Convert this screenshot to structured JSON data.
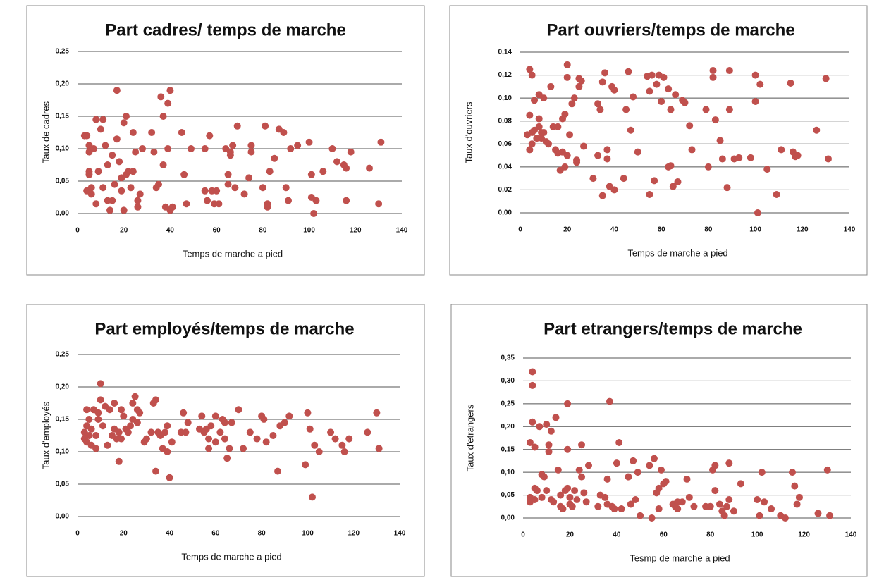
{
  "chart_data": [
    {
      "type": "scatter",
      "title": "Part cadres/ temps de marche",
      "xlabel": "Temps de marche a pied",
      "ylabel": "Taux de cadres",
      "color": "#c0504d",
      "grid": true,
      "xlim": [
        0,
        140
      ],
      "xticks": [
        0,
        20,
        40,
        60,
        80,
        100,
        120,
        140
      ],
      "ylim": [
        0,
        0.25
      ],
      "yticks": [
        {
          "value": 0,
          "label": "0,00"
        },
        {
          "value": 0.05,
          "label": "0,05"
        },
        {
          "value": 0.1,
          "label": "0,10"
        },
        {
          "value": 0.15,
          "label": "0,15"
        },
        {
          "value": 0.2,
          "label": "0,20"
        },
        {
          "value": 0.25,
          "label": "0,25"
        }
      ],
      "x": [
        3,
        4,
        4,
        5,
        5,
        5,
        5,
        6,
        6,
        7,
        8,
        8,
        9,
        10,
        11,
        11,
        12,
        13,
        13,
        14,
        15,
        15,
        16,
        17,
        17,
        18,
        19,
        19,
        20,
        20,
        21,
        21,
        22,
        23,
        24,
        24,
        25,
        26,
        26,
        27,
        28,
        32,
        33,
        34,
        35,
        36,
        37,
        37,
        38,
        39,
        39,
        40,
        40,
        41,
        45,
        46,
        47,
        49,
        55,
        55,
        56,
        57,
        58,
        59,
        60,
        61,
        64,
        65,
        65,
        66,
        66,
        67,
        68,
        69,
        72,
        74,
        75,
        75,
        80,
        81,
        82,
        82,
        83,
        85,
        87,
        89,
        90,
        91,
        92,
        95,
        100,
        101,
        101,
        102,
        103,
        106,
        110,
        112,
        115,
        116,
        116,
        118,
        126,
        130,
        131
      ],
      "values": [
        0.12,
        0.12,
        0.035,
        0.105,
        0.095,
        0.065,
        0.06,
        0.04,
        0.03,
        0.1,
        0.145,
        0.015,
        0.065,
        0.13,
        0.145,
        0.04,
        0.105,
        0.02,
        0.075,
        0.005,
        0.02,
        0.09,
        0.045,
        0.19,
        0.115,
        0.08,
        0.035,
        0.055,
        0.005,
        0.14,
        0.15,
        0.06,
        0.065,
        0.04,
        0.125,
        0.065,
        0.095,
        0.02,
        0.01,
        0.03,
        0.1,
        0.125,
        0.095,
        0.04,
        0.045,
        0.18,
        0.15,
        0.075,
        0.01,
        0.1,
        0.17,
        0.19,
        0.005,
        0.01,
        0.125,
        0.06,
        0.015,
        0.1,
        0.1,
        0.035,
        0.02,
        0.12,
        0.035,
        0.015,
        0.035,
        0.015,
        0.1,
        0.06,
        0.045,
        0.095,
        0.09,
        0.105,
        0.04,
        0.135,
        0.03,
        0.055,
        0.105,
        0.095,
        0.04,
        0.135,
        0.015,
        0.01,
        0.065,
        0.085,
        0.13,
        0.125,
        0.04,
        0.02,
        0.1,
        0.105,
        0.11,
        0.025,
        0.06,
        0.0,
        0.02,
        0.065,
        0.1,
        0.08,
        0.075,
        0.07,
        0.02,
        0.095,
        0.07,
        0.015,
        0.11
      ]
    },
    {
      "type": "scatter",
      "title": "Part ouvriers/temps de marche",
      "xlabel": "Temps de marche a pied",
      "ylabel": "Taux d'ouvriers",
      "color": "#c0504d",
      "grid": true,
      "xlim": [
        0,
        140
      ],
      "xticks": [
        0,
        20,
        40,
        60,
        80,
        100,
        120,
        140
      ],
      "ylim": [
        0,
        0.14
      ],
      "yticks": [
        {
          "value": 0,
          "label": "0,00"
        },
        {
          "value": 0.02,
          "label": "0,02"
        },
        {
          "value": 0.04,
          "label": "0,04"
        },
        {
          "value": 0.06,
          "label": "0,06"
        },
        {
          "value": 0.08,
          "label": "0,08"
        },
        {
          "value": 0.1,
          "label": "0,10"
        },
        {
          "value": 0.12,
          "label": "0,12"
        },
        {
          "value": 0.14,
          "label": "0,14"
        }
      ],
      "x": [
        3,
        4,
        4,
        4,
        5,
        5,
        5,
        6,
        6,
        7,
        8,
        8,
        8,
        9,
        9,
        10,
        10,
        11,
        12,
        13,
        14,
        15,
        16,
        16,
        17,
        18,
        18,
        19,
        19,
        20,
        20,
        20,
        21,
        22,
        23,
        24,
        24,
        25,
        25,
        26,
        27,
        31,
        33,
        33,
        34,
        35,
        35,
        36,
        37,
        37,
        38,
        39,
        40,
        40,
        44,
        45,
        46,
        47,
        48,
        50,
        54,
        55,
        55,
        56,
        57,
        58,
        59,
        60,
        61,
        63,
        63,
        64,
        64,
        65,
        66,
        67,
        69,
        70,
        72,
        73,
        79,
        80,
        82,
        82,
        83,
        85,
        86,
        88,
        89,
        89,
        91,
        93,
        98,
        100,
        100,
        101,
        102,
        105,
        109,
        111,
        115,
        116,
        117,
        118,
        126,
        130,
        131
      ],
      "values": [
        0.068,
        0.125,
        0.055,
        0.085,
        0.12,
        0.07,
        0.06,
        0.098,
        0.072,
        0.065,
        0.103,
        0.082,
        0.075,
        0.07,
        0.065,
        0.1,
        0.07,
        0.062,
        0.06,
        0.11,
        0.075,
        0.055,
        0.075,
        0.052,
        0.037,
        0.082,
        0.053,
        0.04,
        0.086,
        0.129,
        0.118,
        0.05,
        0.068,
        0.095,
        0.1,
        0.046,
        0.044,
        0.11,
        0.117,
        0.115,
        0.058,
        0.03,
        0.05,
        0.095,
        0.09,
        0.015,
        0.114,
        0.122,
        0.055,
        0.047,
        0.023,
        0.11,
        0.107,
        0.02,
        0.03,
        0.09,
        0.123,
        0.072,
        0.101,
        0.053,
        0.119,
        0.106,
        0.016,
        0.12,
        0.028,
        0.112,
        0.12,
        0.097,
        0.118,
        0.108,
        0.04,
        0.041,
        0.09,
        0.023,
        0.103,
        0.027,
        0.098,
        0.096,
        0.076,
        0.055,
        0.09,
        0.04,
        0.124,
        0.118,
        0.081,
        0.063,
        0.047,
        0.022,
        0.124,
        0.09,
        0.047,
        0.048,
        0.048,
        0.12,
        0.097,
        0.0,
        0.112,
        0.038,
        0.016,
        0.055,
        0.113,
        0.053,
        0.049,
        0.05,
        0.072,
        0.117,
        0.047
      ]
    },
    {
      "type": "scatter",
      "title": "Part employés/temps de marche",
      "xlabel": "Temps de marche a pied",
      "ylabel": "Taux d'employés",
      "color": "#c0504d",
      "grid": true,
      "xlim": [
        0,
        140
      ],
      "xticks": [
        0,
        20,
        40,
        60,
        80,
        100,
        120,
        140
      ],
      "ylim": [
        0,
        0.25
      ],
      "yticks": [
        {
          "value": 0,
          "label": "0,00"
        },
        {
          "value": 0.05,
          "label": "0,05"
        },
        {
          "value": 0.1,
          "label": "0,10"
        },
        {
          "value": 0.15,
          "label": "0,15"
        },
        {
          "value": 0.2,
          "label": "0,20"
        },
        {
          "value": 0.25,
          "label": "0,25"
        }
      ],
      "x": [
        3,
        3,
        4,
        4,
        4,
        5,
        5,
        6,
        6,
        7,
        8,
        8,
        9,
        9,
        10,
        10,
        11,
        12,
        13,
        14,
        15,
        16,
        16,
        17,
        18,
        18,
        19,
        19,
        20,
        21,
        22,
        23,
        24,
        24,
        25,
        26,
        26,
        27,
        29,
        30,
        32,
        33,
        34,
        34,
        35,
        36,
        37,
        38,
        39,
        39,
        40,
        41,
        45,
        46,
        47,
        48,
        53,
        54,
        55,
        56,
        57,
        57,
        58,
        60,
        60,
        62,
        63,
        64,
        64,
        65,
        66,
        67,
        70,
        72,
        75,
        78,
        80,
        81,
        82,
        85,
        87,
        88,
        90,
        92,
        99,
        100,
        101,
        102,
        103,
        105,
        110,
        112,
        115,
        116,
        118,
        126,
        130,
        131
      ],
      "values": [
        0.12,
        0.13,
        0.165,
        0.14,
        0.115,
        0.125,
        0.15,
        0.11,
        0.135,
        0.165,
        0.105,
        0.125,
        0.16,
        0.15,
        0.205,
        0.18,
        0.14,
        0.17,
        0.11,
        0.165,
        0.125,
        0.175,
        0.135,
        0.12,
        0.085,
        0.13,
        0.165,
        0.12,
        0.155,
        0.135,
        0.13,
        0.14,
        0.175,
        0.15,
        0.185,
        0.165,
        0.145,
        0.16,
        0.115,
        0.12,
        0.13,
        0.175,
        0.18,
        0.07,
        0.13,
        0.125,
        0.105,
        0.13,
        0.1,
        0.14,
        0.06,
        0.115,
        0.13,
        0.16,
        0.13,
        0.145,
        0.135,
        0.155,
        0.13,
        0.135,
        0.12,
        0.105,
        0.14,
        0.155,
        0.115,
        0.13,
        0.15,
        0.145,
        0.12,
        0.09,
        0.105,
        0.145,
        0.165,
        0.105,
        0.13,
        0.12,
        0.155,
        0.15,
        0.115,
        0.125,
        0.07,
        0.14,
        0.145,
        0.155,
        0.08,
        0.16,
        0.135,
        0.03,
        0.11,
        0.1,
        0.13,
        0.12,
        0.11,
        0.1,
        0.12,
        0.13,
        0.16,
        0.105
      ]
    },
    {
      "type": "scatter",
      "title": "Part etrangers/temps de marche",
      "xlabel": "Tesmp de marche a pied",
      "ylabel": "Taux d'etrangers",
      "color": "#c0504d",
      "grid": true,
      "xlim": [
        0,
        140
      ],
      "xticks": [
        0,
        20,
        40,
        60,
        80,
        100,
        120,
        140
      ],
      "ylim": [
        0,
        0.35
      ],
      "yticks": [
        {
          "value": 0,
          "label": "0,00"
        },
        {
          "value": 0.05,
          "label": "0,05"
        },
        {
          "value": 0.1,
          "label": "0,10"
        },
        {
          "value": 0.15,
          "label": "0,15"
        },
        {
          "value": 0.2,
          "label": "0,20"
        },
        {
          "value": 0.25,
          "label": "0,25"
        },
        {
          "value": 0.3,
          "label": "0,30"
        },
        {
          "value": 0.35,
          "label": "0,35"
        }
      ],
      "x": [
        3,
        3,
        3,
        4,
        4,
        4,
        5,
        5,
        5,
        6,
        7,
        8,
        8,
        9,
        10,
        10,
        11,
        11,
        12,
        12,
        13,
        14,
        15,
        16,
        16,
        17,
        18,
        19,
        19,
        19,
        20,
        20,
        21,
        22,
        23,
        24,
        25,
        25,
        26,
        27,
        28,
        32,
        33,
        35,
        36,
        36,
        37,
        38,
        39,
        40,
        41,
        42,
        45,
        46,
        47,
        48,
        49,
        50,
        54,
        55,
        56,
        57,
        58,
        58,
        59,
        60,
        61,
        64,
        65,
        66,
        66,
        68,
        70,
        71,
        73,
        78,
        80,
        81,
        82,
        82,
        84,
        85,
        86,
        87,
        88,
        88,
        90,
        93,
        100,
        101,
        102,
        103,
        106,
        110,
        112,
        115,
        116,
        117,
        118,
        126,
        130,
        131
      ],
      "values": [
        0.165,
        0.045,
        0.035,
        0.32,
        0.29,
        0.21,
        0.155,
        0.065,
        0.04,
        0.06,
        0.2,
        0.095,
        0.045,
        0.09,
        0.205,
        0.06,
        0.16,
        0.145,
        0.19,
        0.04,
        0.035,
        0.22,
        0.105,
        0.05,
        0.025,
        0.02,
        0.06,
        0.25,
        0.15,
        0.065,
        0.045,
        0.03,
        0.025,
        0.06,
        0.04,
        0.105,
        0.16,
        0.09,
        0.055,
        0.035,
        0.115,
        0.025,
        0.05,
        0.045,
        0.03,
        0.085,
        0.255,
        0.025,
        0.02,
        0.12,
        0.165,
        0.02,
        0.09,
        0.03,
        0.125,
        0.04,
        0.1,
        0.005,
        0.115,
        0.0,
        0.13,
        0.055,
        0.065,
        0.02,
        0.105,
        0.075,
        0.08,
        0.03,
        0.025,
        0.035,
        0.02,
        0.035,
        0.085,
        0.045,
        0.025,
        0.025,
        0.025,
        0.105,
        0.115,
        0.06,
        0.03,
        0.015,
        0.005,
        0.025,
        0.12,
        0.04,
        0.015,
        0.075,
        0.04,
        0.005,
        0.1,
        0.035,
        0.02,
        0.005,
        0.0,
        0.1,
        0.07,
        0.03,
        0.045,
        0.01,
        0.105,
        0.005
      ]
    }
  ]
}
